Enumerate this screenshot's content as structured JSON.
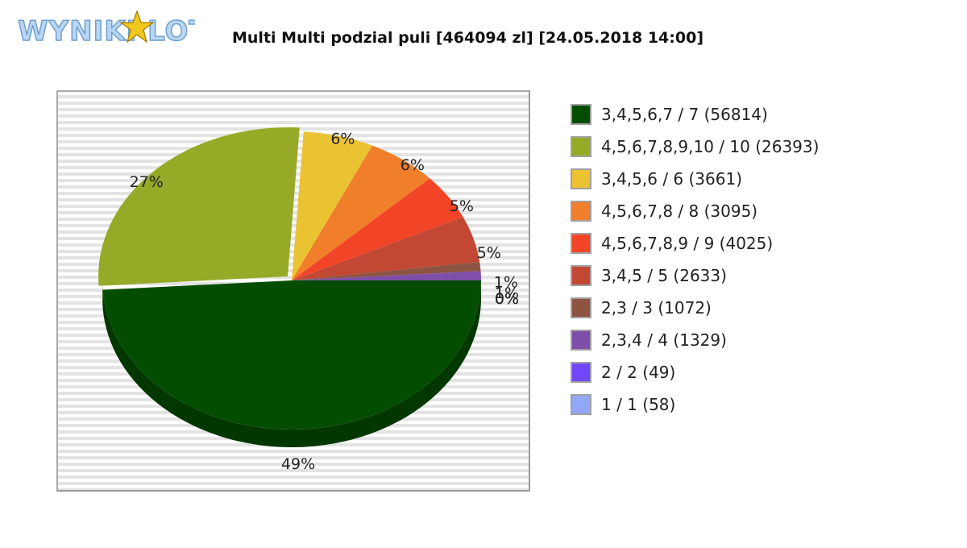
{
  "logo": {
    "text": "WYNIKI LOTTO"
  },
  "title": "Multi Multi podzial puli [464094 zl] [24.05.2018 14:00]",
  "chart_data": {
    "type": "pie",
    "title": "Multi Multi podzial puli [464094 zl] [24.05.2018 14:00]",
    "legend_position": "right",
    "slices": [
      {
        "label": "3,4,5,6,7 / 7 (56814)",
        "value": 49,
        "pct_label": "49%",
        "color": "#034d00"
      },
      {
        "label": "4,5,6,7,8,9,10 / 10 (26393)",
        "value": 27,
        "pct_label": "27%",
        "color": "#96aa27"
      },
      {
        "label": "3,4,5,6 / 6 (3661)",
        "value": 6,
        "pct_label": "6%",
        "color": "#ebc332"
      },
      {
        "label": "4,5,6,7,8 / 8 (3095)",
        "value": 6,
        "pct_label": "6%",
        "color": "#f07e2a"
      },
      {
        "label": "4,5,6,7,8,9 / 9 (4025)",
        "value": 5,
        "pct_label": "5%",
        "color": "#f24528"
      },
      {
        "label": "3,4,5 / 5 (2633)",
        "value": 5,
        "pct_label": "5%",
        "color": "#c34834"
      },
      {
        "label": "2,3 / 3 (1072)",
        "value": 1,
        "pct_label": "1%",
        "color": "#8d5541"
      },
      {
        "label": "2,3,4 / 4 (1329)",
        "value": 1,
        "pct_label": "1%",
        "color": "#7e4fa8"
      },
      {
        "label": "2 / 2 (49)",
        "value": 0,
        "pct_label": "0%",
        "color": "#7047fa"
      },
      {
        "label": "1 / 1 (58)",
        "value": 0,
        "pct_label": "0%",
        "color": "#93a7f9"
      }
    ]
  }
}
